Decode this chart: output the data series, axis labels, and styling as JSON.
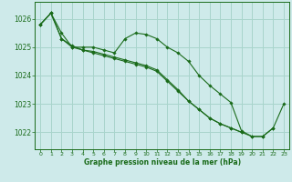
{
  "title": "Graphe pression niveau de la mer (hPa)",
  "background_color": "#ceeaea",
  "grid_color": "#a8d4cc",
  "line_color": "#1a6b1a",
  "marker_color": "#1a6b1a",
  "xlim": [
    -0.5,
    23.5
  ],
  "ylim": [
    1021.4,
    1026.6
  ],
  "yticks": [
    1022,
    1023,
    1024,
    1025,
    1026
  ],
  "xticks": [
    0,
    1,
    2,
    3,
    4,
    5,
    6,
    7,
    8,
    9,
    10,
    11,
    12,
    13,
    14,
    15,
    16,
    17,
    18,
    19,
    20,
    21,
    22,
    23
  ],
  "series": [
    [
      1025.8,
      1026.2,
      1025.5,
      1025.0,
      1025.0,
      1025.0,
      1024.9,
      1024.8,
      1025.3,
      1025.5,
      1025.45,
      1025.3,
      1025.0,
      1024.8,
      1024.5,
      1024.0,
      1023.65,
      1023.35,
      1023.05,
      1022.05,
      1021.85,
      1021.85,
      1022.15,
      1023.0
    ],
    [
      1025.8,
      1026.2,
      1025.3,
      1025.0,
      1024.9,
      1024.8,
      1024.7,
      1024.6,
      1024.5,
      1024.4,
      1024.3,
      1024.15,
      1023.8,
      1023.45,
      1023.1,
      1022.8,
      1022.5,
      1022.3,
      1022.15,
      1022.0,
      1021.85,
      1021.85,
      1022.15,
      null
    ],
    [
      1025.8,
      1026.2,
      1025.3,
      1025.05,
      1024.9,
      1024.85,
      1024.75,
      1024.65,
      1024.55,
      1024.45,
      1024.35,
      1024.2,
      1023.85,
      1023.5,
      1023.1,
      1022.8,
      1022.5,
      1022.3,
      1022.15,
      1022.0,
      null,
      null,
      null,
      null
    ]
  ]
}
